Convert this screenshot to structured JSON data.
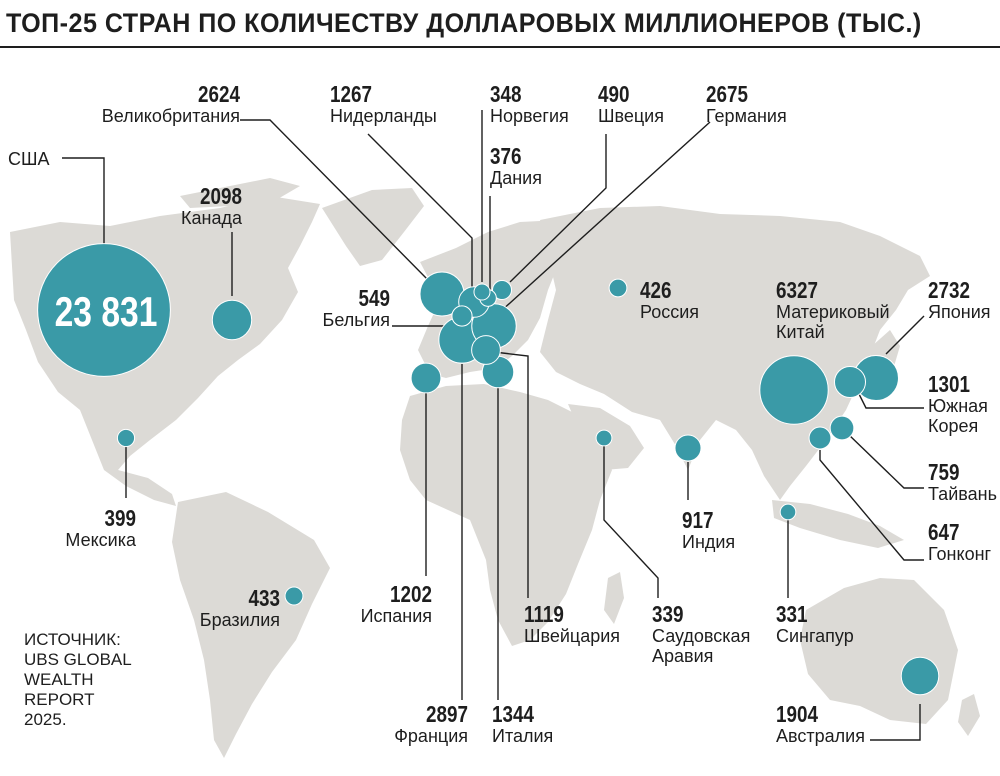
{
  "title": "ТОП-25 СТРАН ПО КОЛИЧЕСТВУ ДОЛЛАРОВЫХ МИЛЛИОНЕРОВ (ТЫС.)",
  "countries": {
    "usa": {
      "name": "США",
      "value": "23 831"
    },
    "canada": {
      "name": "Канада",
      "value": "2098"
    },
    "mexico": {
      "name": "Мексика",
      "value": "399"
    },
    "brazil": {
      "name": "Бразилия",
      "value": "433"
    },
    "uk": {
      "name": "Великобритания",
      "value": "2624"
    },
    "netherlands": {
      "name": "Нидерланды",
      "value": "1267"
    },
    "norway": {
      "name": "Норвегия",
      "value": "348"
    },
    "denmark": {
      "name": "Дания",
      "value": "376"
    },
    "sweden": {
      "name": "Швеция",
      "value": "490"
    },
    "germany": {
      "name": "Германия",
      "value": "2675"
    },
    "belgium": {
      "name": "Бельгия",
      "value": "549"
    },
    "spain": {
      "name": "Испания",
      "value": "1202"
    },
    "france": {
      "name": "Франция",
      "value": "2897"
    },
    "italy": {
      "name": "Италия",
      "value": "1344"
    },
    "switzerland": {
      "name": "Швейцария",
      "value": "1119"
    },
    "russia": {
      "name": "Россия",
      "value": "426"
    },
    "saudi": {
      "name": "Саудовская Аравия",
      "name_line1": "Саудовская",
      "name_line2": "Аравия",
      "value": "339"
    },
    "india": {
      "name": "Индия",
      "value": "917"
    },
    "china": {
      "name": "Материковый Китай",
      "name_line1": "Материковый",
      "name_line2": "Китай",
      "value": "6327"
    },
    "japan": {
      "name": "Япония",
      "value": "2732"
    },
    "korea": {
      "name": "Южная Корея",
      "name_line1": "Южная",
      "name_line2": "Корея",
      "value": "1301"
    },
    "taiwan": {
      "name": "Тайвань",
      "value": "759"
    },
    "hongkong": {
      "name": "Гонконг",
      "value": "647"
    },
    "singapore": {
      "name": "Сингапур",
      "value": "331"
    },
    "australia": {
      "name": "Австралия",
      "value": "1904"
    }
  },
  "source": {
    "line1": "ИСТОЧНИК:",
    "line2": "UBS GLOBAL",
    "line3": "WEALTH",
    "line4": "REPORT",
    "line5": "2025."
  },
  "colors": {
    "land": "#dcdad6",
    "bubble": "#3a9aa7",
    "bubble_stroke": "#ffffff",
    "leader": "#1e1e1e"
  }
}
